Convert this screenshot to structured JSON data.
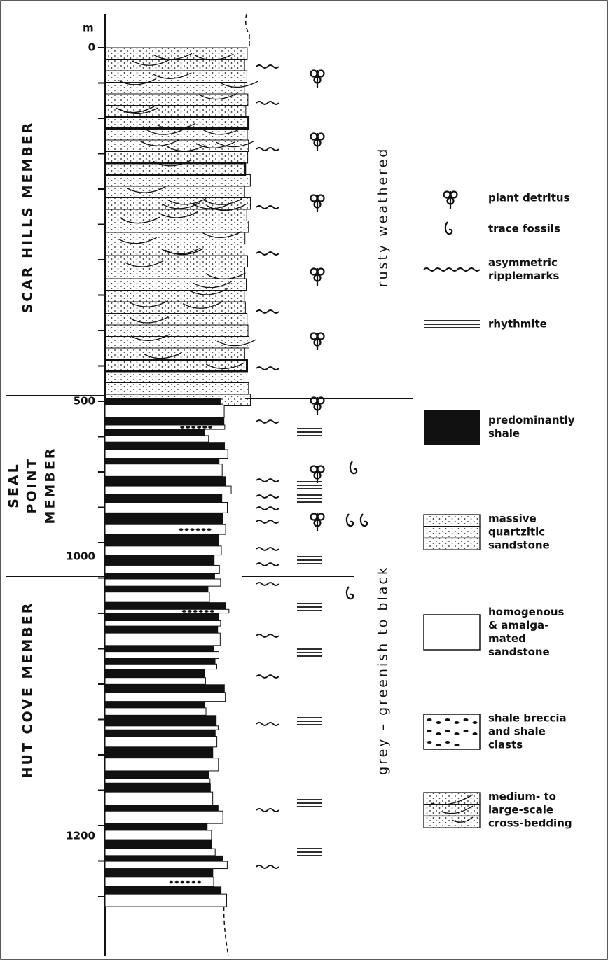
{
  "depth_axis": {
    "unit": "m",
    "labels": [
      "0",
      "500",
      "1000",
      "1200"
    ]
  },
  "members": [
    {
      "lines": [
        "SCAR HILLS MEMBER"
      ]
    },
    {
      "lines": [
        "SEAL",
        "POINT",
        "MEMBER"
      ]
    },
    {
      "lines": [
        "HUT COVE MEMBER"
      ]
    }
  ],
  "weathering": [
    "rusty weathered",
    "grey – greenish to black"
  ],
  "legend": [
    {
      "lines": [
        "plant detritus"
      ]
    },
    {
      "lines": [
        "trace fossils"
      ]
    },
    {
      "lines": [
        "asymmetric",
        "ripplemarks"
      ]
    },
    {
      "lines": [
        "rhythmite"
      ]
    },
    {
      "lines": [
        "predominantly",
        "shale"
      ]
    },
    {
      "lines": [
        "massive",
        "quartzitic",
        "sandstone"
      ]
    },
    {
      "lines": [
        "homogenous",
        "& amalga-",
        "mated",
        "sandstone"
      ]
    },
    {
      "lines": [
        "shale breccia",
        "and shale",
        "clasts"
      ]
    },
    {
      "lines": [
        "medium- to",
        "large-scale",
        "cross-bedding"
      ]
    }
  ]
}
